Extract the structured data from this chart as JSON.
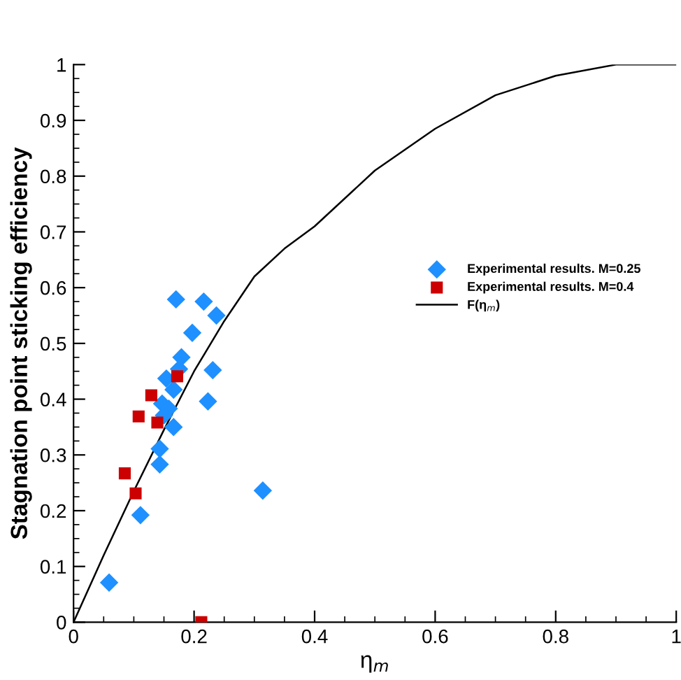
{
  "chart_data": {
    "type": "scatter",
    "xlabel": "η$_{m}$",
    "ylabel": "Stagnation point sticking efficiency",
    "xlim": [
      0,
      1
    ],
    "ylim": [
      0,
      1
    ],
    "xticks": [
      0,
      0.2,
      0.4,
      0.6,
      0.8,
      1
    ],
    "yticks": [
      0,
      0.1,
      0.2,
      0.3,
      0.4,
      0.5,
      0.6,
      0.7,
      0.8,
      0.9,
      1
    ],
    "grid": false,
    "legend": "right",
    "series": [
      {
        "name": "Experimental results. M=0.25",
        "marker": "diamond",
        "color": "#1e90ff",
        "x": [
          0.059,
          0.111,
          0.143,
          0.143,
          0.166,
          0.147,
          0.158,
          0.15,
          0.166,
          0.154,
          0.175,
          0.179,
          0.197,
          0.17,
          0.216,
          0.237,
          0.231,
          0.223,
          0.314
        ],
        "values": [
          0.071,
          0.192,
          0.283,
          0.311,
          0.35,
          0.392,
          0.383,
          0.371,
          0.417,
          0.437,
          0.454,
          0.475,
          0.519,
          0.579,
          0.575,
          0.55,
          0.452,
          0.396,
          0.236
        ]
      },
      {
        "name": "Experimental results. M=0.4",
        "marker": "square",
        "color": "#cc0000",
        "x": [
          0.085,
          0.103,
          0.108,
          0.129,
          0.139,
          0.172,
          0.212
        ],
        "values": [
          0.267,
          0.231,
          0.369,
          0.407,
          0.358,
          0.441,
          0
        ]
      },
      {
        "name": "F(η$_{m}$)",
        "type": "line",
        "marker": "none",
        "line_style": "solid",
        "color": "#000000",
        "x": [
          0,
          0.05,
          0.1,
          0.15,
          0.2,
          0.25,
          0.3,
          0.35,
          0.4,
          0.5,
          0.6,
          0.7,
          0.8,
          0.9,
          1.0
        ],
        "values": [
          0,
          0.12,
          0.235,
          0.345,
          0.45,
          0.54,
          0.62,
          0.67,
          0.71,
          0.81,
          0.885,
          0.945,
          0.98,
          1.0,
          1.0
        ]
      }
    ]
  }
}
